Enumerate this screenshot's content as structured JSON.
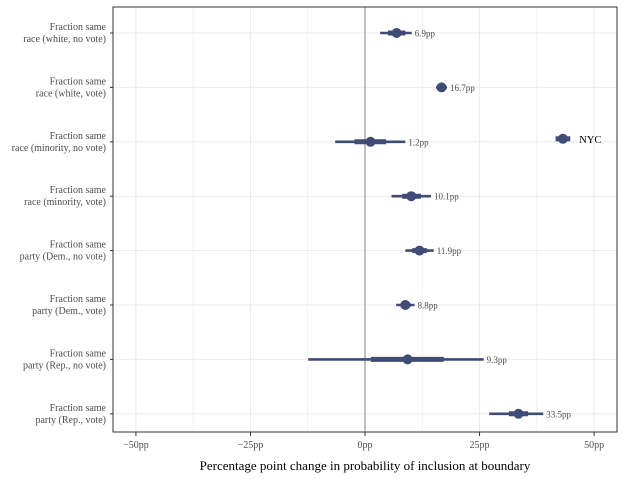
{
  "chart_data": {
    "type": "forest",
    "xlabel": "Percentage point change in probability of inclusion at boundary",
    "xlim": [
      -55,
      55
    ],
    "xticks": [
      -50,
      -25,
      0,
      25,
      50
    ],
    "xtick_labels": [
      "−50pp",
      "−25pp",
      "0pp",
      "25pp",
      "50pp"
    ],
    "reference_line": 0,
    "colors": {
      "point": "#414b78",
      "reference": "#a6a6a6",
      "grid": "#ebebeb"
    },
    "rows": [
      {
        "label": [
          "Fraction same",
          "race (white, no vote)"
        ],
        "estimate": 6.9,
        "inner": [
          5.0,
          8.8
        ],
        "outer": [
          3.3,
          10.2
        ],
        "value_label": "6.9pp"
      },
      {
        "label": [
          "Fraction same",
          "race (white, vote)"
        ],
        "estimate": 16.7,
        "inner": [
          16.1,
          17.3
        ],
        "outer": [
          15.5,
          17.9
        ],
        "value_label": "16.7pp"
      },
      {
        "label": [
          "Fraction same",
          "race (minority, no vote)"
        ],
        "estimate": 1.2,
        "inner": [
          -2.3,
          4.6
        ],
        "outer": [
          -6.5,
          8.8
        ],
        "value_label": "1.2pp"
      },
      {
        "label": [
          "Fraction same",
          "race (minority, vote)"
        ],
        "estimate": 10.1,
        "inner": [
          8.1,
          12.2
        ],
        "outer": [
          5.8,
          14.4
        ],
        "value_label": "10.1pp"
      },
      {
        "label": [
          "Fraction same",
          "party (Dem., no vote)"
        ],
        "estimate": 11.9,
        "inner": [
          10.3,
          13.5
        ],
        "outer": [
          8.8,
          15.0
        ],
        "value_label": "11.9pp"
      },
      {
        "label": [
          "Fraction same",
          "party (Dem., vote)"
        ],
        "estimate": 8.8,
        "inner": [
          7.8,
          9.9
        ],
        "outer": [
          6.8,
          10.8
        ],
        "value_label": "8.8pp"
      },
      {
        "label": [
          "Fraction same",
          "party (Rep., no vote)"
        ],
        "estimate": 9.3,
        "inner": [
          1.3,
          17.2
        ],
        "outer": [
          -12.4,
          25.9
        ],
        "value_label": "9.3pp"
      },
      {
        "label": [
          "Fraction same",
          "party (Rep., vote)"
        ],
        "estimate": 33.5,
        "inner": [
          31.4,
          35.6
        ],
        "outer": [
          27.1,
          38.9
        ],
        "value_label": "33.5pp"
      }
    ],
    "nyc_point": {
      "row": 2,
      "estimate": 43.2,
      "inner": [
        41.6,
        44.8
      ],
      "label": "NYC"
    }
  }
}
